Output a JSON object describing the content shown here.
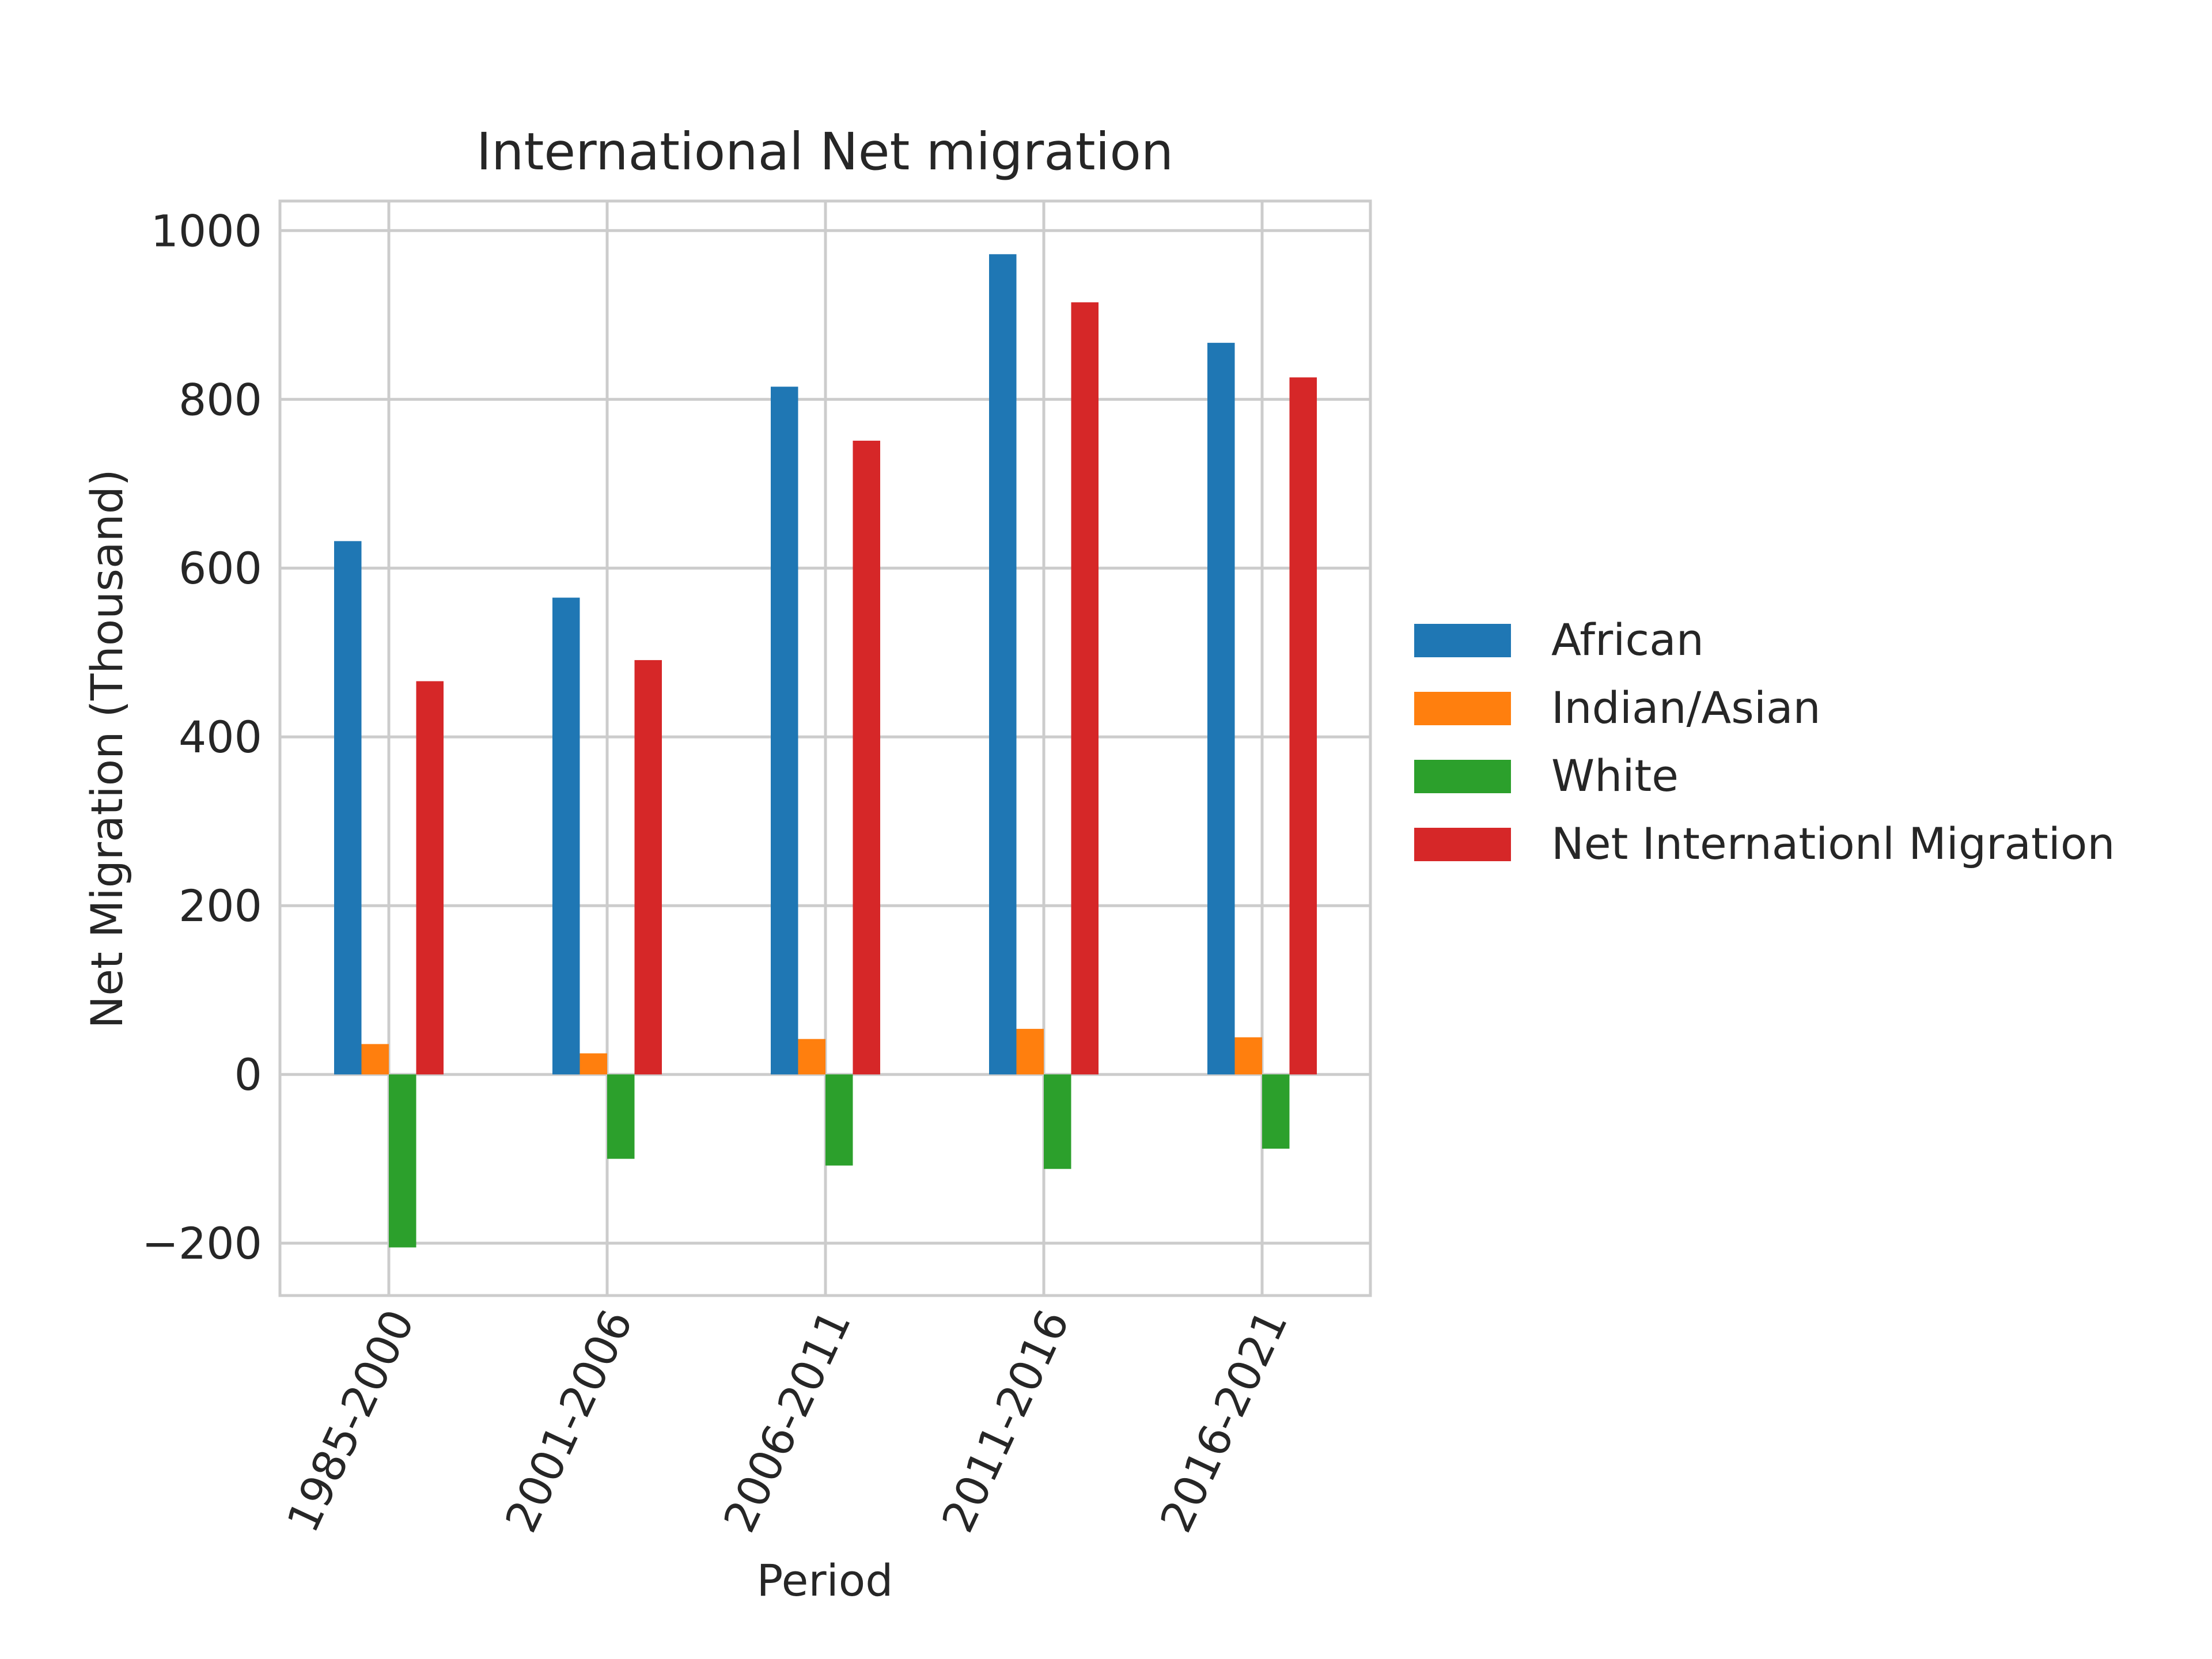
{
  "chart_data": {
    "type": "bar",
    "title": "International Net migration",
    "xlabel": "Period",
    "ylabel": "Net Migration (Thousand)",
    "categories": [
      "1985-2000",
      "2001-2006",
      "2006-2011",
      "2011-2016",
      "2016-2021"
    ],
    "series": [
      {
        "name": "African",
        "color": "#1f77b4",
        "values": [
          632,
          565,
          815,
          972,
          867
        ]
      },
      {
        "name": "Indian/Asian",
        "color": "#ff7f0e",
        "values": [
          36,
          25,
          42,
          54,
          44
        ]
      },
      {
        "name": "White",
        "color": "#2ca02c",
        "values": [
          -205,
          -100,
          -108,
          -112,
          -88
        ]
      },
      {
        "name": "Net Internationl Migration",
        "color": "#d62728",
        "values": [
          466,
          491,
          751,
          915,
          826
        ]
      }
    ],
    "ylim": [
      -262,
      1035
    ],
    "yticks": [
      -200,
      0,
      200,
      400,
      600,
      800,
      1000
    ],
    "ytick_labels": [
      "−200",
      "0",
      "200",
      "400",
      "600",
      "800",
      "1000"
    ],
    "grid": true,
    "legend_position": "center-left outside plot"
  }
}
